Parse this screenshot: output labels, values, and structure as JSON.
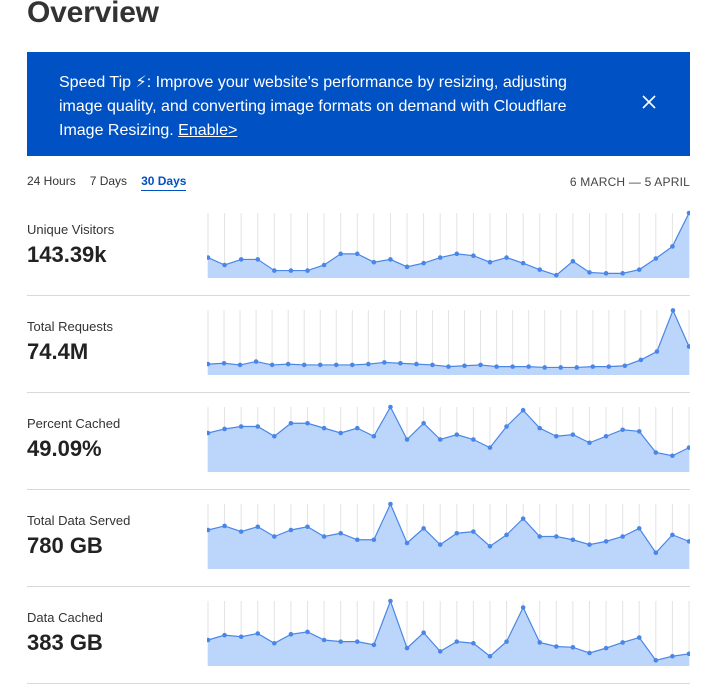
{
  "page": {
    "title": "Overview"
  },
  "banner": {
    "text": "Speed Tip ⚡: Improve your website's performance by resizing, adjusting image quality, and converting image formats on demand with Cloudflare Image Resizing. ",
    "link": "Enable>",
    "bg": "#0051c3"
  },
  "timeframe": {
    "tabs": [
      "24 Hours",
      "7 Days",
      "30 Days"
    ],
    "active_tab": "30 Days",
    "date_range": "6 MARCH — 5 APRIL"
  },
  "colors": {
    "line": "#4a86e8",
    "fill": "#bcd6fb",
    "grid": "#e3e3e3"
  },
  "metrics": [
    {
      "label": "Unique Visitors",
      "value": "143.39k",
      "series": [
        2.2,
        1.4,
        2.0,
        2.0,
        0.8,
        0.8,
        0.8,
        1.4,
        2.6,
        2.6,
        1.7,
        2.0,
        1.2,
        1.6,
        2.2,
        2.6,
        2.4,
        1.7,
        2.2,
        1.6,
        0.9,
        0.3,
        1.8,
        0.6,
        0.5,
        0.5,
        0.9,
        2.1,
        3.4,
        7.0
      ],
      "min": 0,
      "max": 7
    },
    {
      "label": "Total Requests",
      "value": "74.4M",
      "series": [
        2.6,
        2.8,
        2.4,
        3.2,
        2.4,
        2.6,
        2.4,
        2.4,
        2.4,
        2.4,
        2.6,
        3.0,
        2.8,
        2.6,
        2.4,
        2.0,
        2.2,
        2.4,
        2.0,
        2.0,
        2.0,
        1.8,
        1.8,
        1.8,
        2.0,
        2.0,
        2.2,
        3.6,
        5.6,
        15.4,
        6.8
      ],
      "min": 0,
      "max": 15.5
    },
    {
      "label": "Percent Cached",
      "value": "49.09%",
      "series": [
        4.8,
        5.3,
        5.6,
        5.6,
        4.4,
        6.0,
        6.0,
        5.4,
        4.8,
        5.4,
        4.4,
        8.0,
        4.0,
        6.0,
        4.0,
        4.6,
        4.0,
        3.0,
        5.6,
        7.6,
        5.4,
        4.4,
        4.6,
        3.6,
        4.4,
        5.2,
        5.0,
        2.4,
        2.0,
        3.0
      ],
      "min": 0,
      "max": 8
    },
    {
      "label": "Total Data Served",
      "value": "780 GB",
      "series": [
        4.8,
        5.3,
        4.6,
        5.2,
        4.0,
        4.8,
        5.2,
        4.0,
        4.4,
        3.6,
        3.6,
        8.0,
        3.2,
        5.0,
        3.0,
        4.4,
        4.6,
        2.8,
        4.2,
        6.2,
        4.0,
        4.0,
        3.6,
        3.0,
        3.4,
        4.0,
        5.0,
        2.0,
        4.2,
        3.4
      ],
      "min": 0,
      "max": 8
    },
    {
      "label": "Data Cached",
      "value": "383 GB",
      "series": [
        3.2,
        3.8,
        3.6,
        4.0,
        2.8,
        3.9,
        4.2,
        3.2,
        3.0,
        3.0,
        2.6,
        8.0,
        2.2,
        4.1,
        1.8,
        3.0,
        2.8,
        1.2,
        3.0,
        7.2,
        2.9,
        2.4,
        2.3,
        1.6,
        2.2,
        2.9,
        3.5,
        0.7,
        1.2,
        1.5
      ],
      "min": 0,
      "max": 8
    }
  ]
}
